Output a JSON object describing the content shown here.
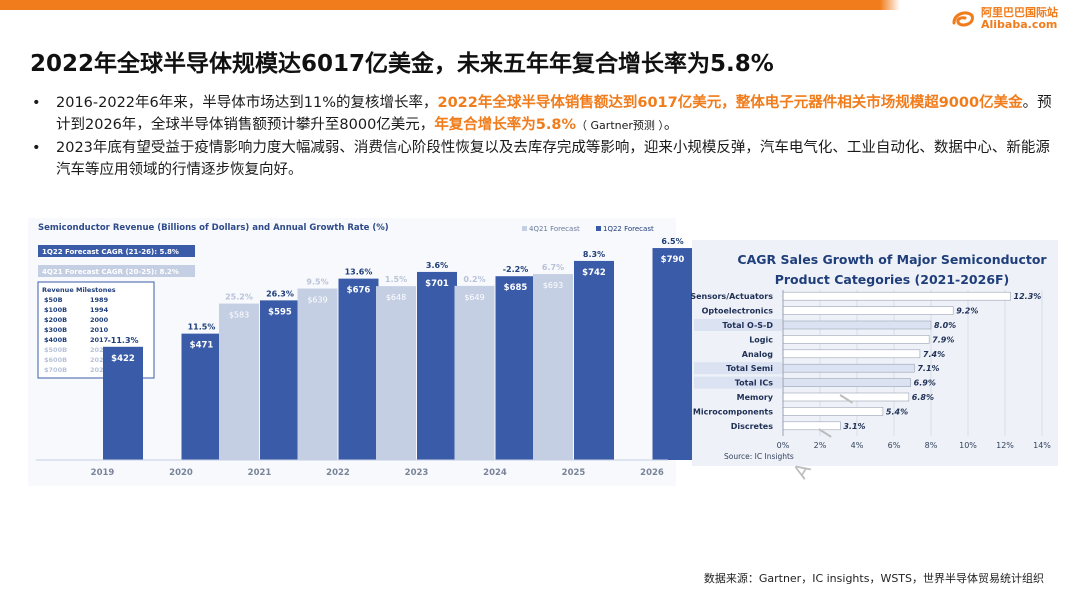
{
  "logo": {
    "cn": "阿里巴巴国际站",
    "en": "Alibaba.com"
  },
  "title": "2022年全球半导体规模达6017亿美金，未来五年年复合增长率为5.8%",
  "bullets": [
    {
      "p1": "2016-2022年6年来，半导体市场达到11%的复核增长率，",
      "h1": "2022年全球半导体销售额达到6017亿美元，整体电子元器件相关市场规模超9000亿美金",
      "p2": "。预计到2026年，全球半导体销售额预计攀升至8000亿美元，",
      "h2": "年复合增长率为5.8%",
      "cite": "（ Gartner预测 ）",
      "end": "。"
    },
    {
      "text": "2023年底有望受益于疫情影响力度大幅减弱、消费信心阶段性恢复以及去库存完成等影响，迎来小规模反弹，汽车电气化、工业自动化、数据中心、新能源汽车等应用领域的行情逐步恢复向好。"
    }
  ],
  "bullet_char": "•",
  "watermark": "A I I",
  "footer": "数据来源：Gartner，IC insights，WSTS，世界半导体贸易统计组织",
  "chart_data": [
    {
      "type": "bar",
      "title": "Semiconductor Revenue (Billions of Dollars) and Annual Growth Rate (%)",
      "legend": [
        "4Q21 Forecast",
        "1Q22 Forecast"
      ],
      "legend_position": "top-right",
      "colors": {
        "q4": "#c5cfe3",
        "q1": "#3a5ca8",
        "title": "#2e4a8a"
      },
      "categories": [
        "2019",
        "2020",
        "2021",
        "2022",
        "2023",
        "2024",
        "2025",
        "2026"
      ],
      "series": [
        {
          "name": "4Q21 Forecast",
          "values": [
            null,
            null,
            583,
            639,
            648,
            649,
            693,
            null
          ],
          "value_labels": [
            "",
            "",
            "$583",
            "$639",
            "$648",
            "$649",
            "$693",
            ""
          ],
          "growth_labels": [
            "",
            "",
            "25.2%",
            "9.5%",
            "1.5%",
            "0.2%",
            "6.7%",
            ""
          ]
        },
        {
          "name": "1Q22 Forecast",
          "values": [
            422,
            471,
            595,
            676,
            701,
            685,
            742,
            790
          ],
          "value_labels": [
            "$422",
            "$471",
            "$595",
            "$676",
            "$701",
            "$685",
            "$742",
            "$790"
          ],
          "growth_labels": [
            "-11.3%",
            "11.5%",
            "26.3%",
            "13.6%",
            "3.6%",
            "-2.2%",
            "8.3%",
            "6.5%"
          ]
        }
      ],
      "cagr_boxes": [
        "1Q22 Forecast CAGR (21-26): 5.8%",
        "4Q21 Forecast CAGR (20-25): 8.2%"
      ],
      "milestones": {
        "title": "Revenue Milestones",
        "rows": [
          [
            "$50B",
            "1989"
          ],
          [
            "$100B",
            "1994"
          ],
          [
            "$200B",
            "2000"
          ],
          [
            "$300B",
            "2010"
          ],
          [
            "$400B",
            "2017"
          ],
          [
            "$500B",
            "2021"
          ],
          [
            "$600B",
            "2022"
          ],
          [
            "$700B",
            "2025"
          ]
        ],
        "faded_from": 5
      },
      "ylim": [
        0,
        820
      ]
    },
    {
      "type": "bar",
      "orientation": "horizontal",
      "title": [
        "CAGR Sales Growth of Major Semiconductor",
        "Product Categories (2021-2026F)"
      ],
      "source": "Source: IC Insights",
      "categories": [
        "Sensors/Actuators",
        "Optoelectronics",
        "Total O-S-D",
        "Logic",
        "Analog",
        "Total Semi",
        "Total ICs",
        "Memory",
        "Microcomponents",
        "Discretes"
      ],
      "values": [
        12.3,
        9.2,
        8.0,
        7.9,
        7.4,
        7.1,
        6.9,
        6.8,
        5.4,
        3.1
      ],
      "value_labels": [
        "12.3%",
        "9.2%",
        "8.0%",
        "7.9%",
        "7.4%",
        "7.1%",
        "6.9%",
        "6.8%",
        "5.4%",
        "3.1%"
      ],
      "highlighted": [
        2,
        5,
        6
      ],
      "xticks": [
        "0%",
        "2%",
        "4%",
        "6%",
        "8%",
        "10%",
        "12%",
        "14%"
      ],
      "xlim": [
        0,
        14
      ],
      "colors": {
        "bar": "#ffffff",
        "bar_edge": "#9aa3b5",
        "highlight": "#dbe3f3",
        "title": "#1f3e7a"
      }
    }
  ]
}
